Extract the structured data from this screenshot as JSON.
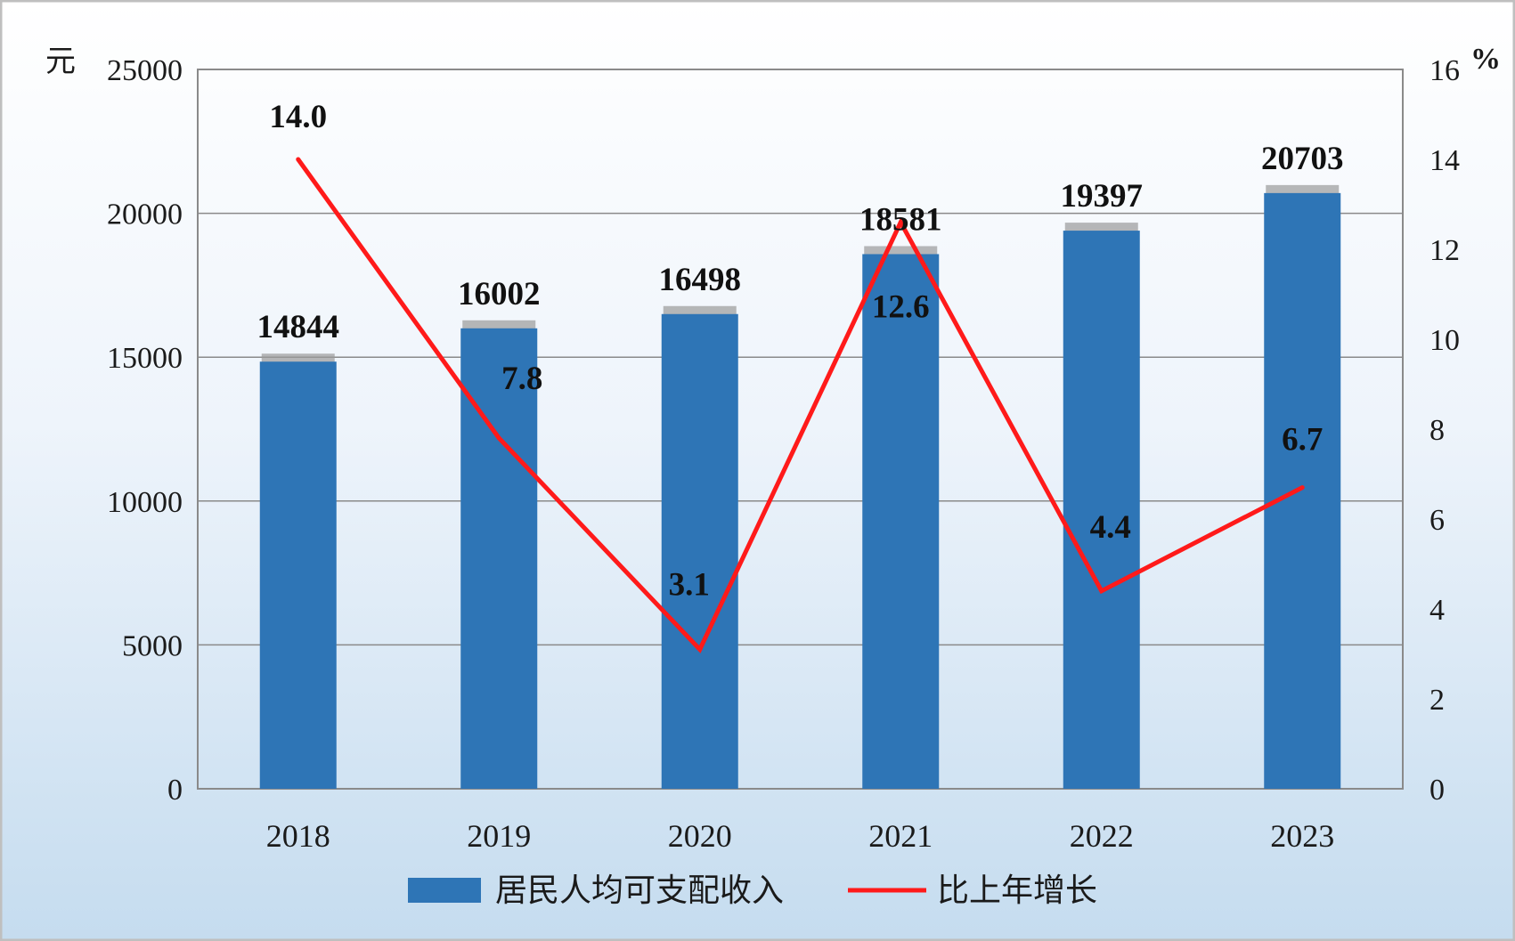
{
  "chart_data": {
    "type": "bar",
    "categories": [
      "2018",
      "2019",
      "2020",
      "2021",
      "2022",
      "2023"
    ],
    "y_left_unit": "元",
    "y_right_unit": "%",
    "y_left_ticks": [
      "0",
      "5000",
      "10000",
      "15000",
      "20000",
      "25000"
    ],
    "y_right_ticks": [
      "0",
      "2",
      "4",
      "6",
      "8",
      "10",
      "12",
      "14",
      "16"
    ],
    "ylim_left": [
      0,
      25000
    ],
    "ylim_right": [
      0,
      16
    ],
    "grid": true,
    "legend_position": "bottom",
    "series": [
      {
        "name": "居民人均可支配收入",
        "type": "bar",
        "axis": "left",
        "color": "#2e75b6",
        "values": [
          14844,
          16002,
          16498,
          18581,
          19397,
          20703
        ],
        "labels": [
          "14844",
          "16002",
          "16498",
          "18581",
          "19397",
          "20703"
        ]
      },
      {
        "name": "比上年增长",
        "type": "line",
        "axis": "right",
        "color": "#ff1a1a",
        "values": [
          14.0,
          7.8,
          3.1,
          12.6,
          4.4,
          6.7
        ],
        "labels": [
          "14.0",
          "7.8",
          "3.1",
          "12.6",
          "4.4",
          "6.7"
        ]
      }
    ]
  }
}
